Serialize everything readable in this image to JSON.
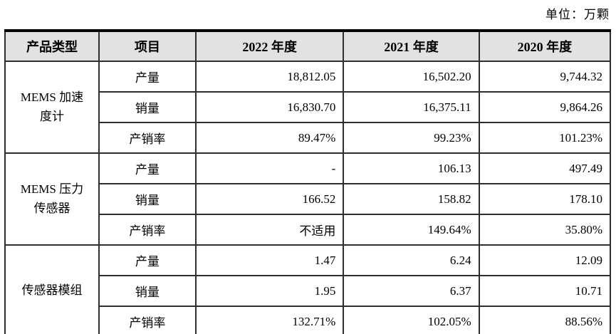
{
  "unit_label": "单位：万颗",
  "colors": {
    "header_bg": "#e2e2e2",
    "border": "#2e2e2e",
    "text": "#000000"
  },
  "table": {
    "headers": {
      "product_type": "产品类型",
      "item": "项目",
      "y2022": "2022 年度",
      "y2021": "2021 年度",
      "y2020": "2020 年度"
    },
    "groups": [
      {
        "category": "MEMS 加速度计",
        "rows": [
          {
            "item": "产量",
            "v2022": "18,812.05",
            "v2021": "16,502.20",
            "v2020": "9,744.32"
          },
          {
            "item": "销量",
            "v2022": "16,830.70",
            "v2021": "16,375.11",
            "v2020": "9,864.26"
          },
          {
            "item": "产销率",
            "v2022": "89.47%",
            "v2021": "99.23%",
            "v2020": "101.23%"
          }
        ]
      },
      {
        "category": "MEMS 压力传感器",
        "rows": [
          {
            "item": "产量",
            "v2022": "-",
            "v2021": "106.13",
            "v2020": "497.49"
          },
          {
            "item": "销量",
            "v2022": "166.52",
            "v2021": "158.82",
            "v2020": "178.10"
          },
          {
            "item": "产销率",
            "v2022": "不适用",
            "v2021": "149.64%",
            "v2020": "35.80%"
          }
        ]
      },
      {
        "category": "传感器模组",
        "rows": [
          {
            "item": "产量",
            "v2022": "1.47",
            "v2021": "6.24",
            "v2020": "12.09"
          },
          {
            "item": "销量",
            "v2022": "1.95",
            "v2021": "6.37",
            "v2020": "10.71"
          },
          {
            "item": "产销率",
            "v2022": "132.71%",
            "v2021": "102.05%",
            "v2020": "88.56%"
          }
        ]
      }
    ]
  }
}
